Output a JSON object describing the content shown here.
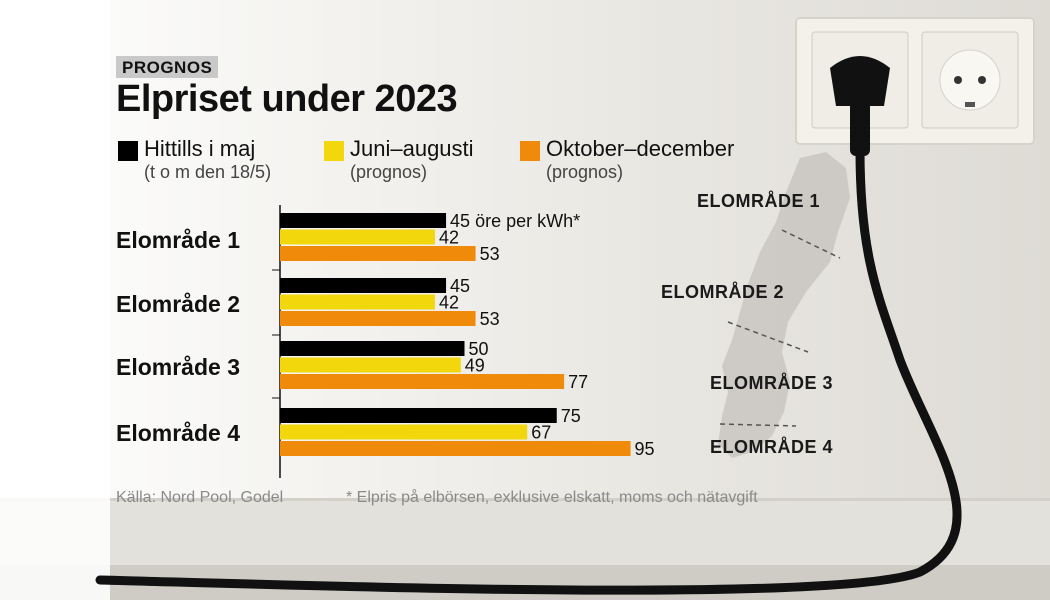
{
  "kicker": "PROGNOS",
  "colors": {
    "series_0": "#000000",
    "series_1": "#f2d70c",
    "series_2": "#ef8a0a",
    "axis": "#111111"
  },
  "legend": [
    {
      "label": "Hittills i maj",
      "sub": "(t o m den 18/5)"
    },
    {
      "label": "Juni–augusti",
      "sub": "(prognos)"
    },
    {
      "label": "Oktober–december",
      "sub": "(prognos)"
    }
  ],
  "map_labels": [
    "ELOMRÅDE 1",
    "ELOMRÅDE 2",
    "ELOMRÅDE 3",
    "ELOMRÅDE 4"
  ],
  "footer": {
    "source": "Källa: Nord Pool, Godel",
    "note": "* Elpris på elbörsen, exklusive elskatt, moms och nätavgift"
  },
  "chart_data": {
    "type": "bar",
    "orientation": "horizontal",
    "title": "Elpriset under 2023",
    "categories": [
      "Elområde 1",
      "Elområde 2",
      "Elområde 3",
      "Elområde 4"
    ],
    "series": [
      {
        "name": "Hittills i maj",
        "values": [
          45,
          45,
          50,
          75
        ]
      },
      {
        "name": "Juni–augusti",
        "values": [
          42,
          42,
          49,
          67
        ]
      },
      {
        "name": "Oktober–december",
        "values": [
          53,
          53,
          77,
          95
        ]
      }
    ],
    "value_labels": [
      [
        "45 öre per kWh*",
        "42",
        "53"
      ],
      [
        "45",
        "42",
        "53"
      ],
      [
        "50",
        "49",
        "77"
      ],
      [
        "75",
        "67",
        "95"
      ]
    ],
    "xlim": [
      0,
      95
    ],
    "grid": false,
    "legend_position": "top"
  }
}
